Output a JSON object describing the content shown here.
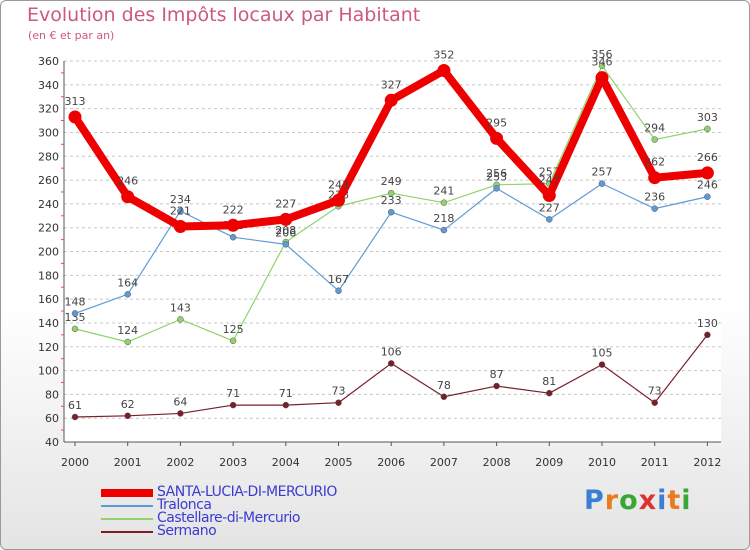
{
  "header": {
    "title": "Evolution des Impôts locaux par Habitant",
    "subtitle": "(en € et par an)"
  },
  "logo": {
    "text": "Proxiti",
    "letter_colors": [
      "#3b7fd4",
      "#e87b1e",
      "#3aa635",
      "#e03030",
      "#3b7fd4",
      "#e87b1e",
      "#3aa635"
    ]
  },
  "chart_data": {
    "type": "line",
    "title": "Evolution des Impôts locaux par Habitant",
    "subtitle": "(en € et par an)",
    "x": [
      "2000",
      "2001",
      "2002",
      "2003",
      "2004",
      "2005",
      "2006",
      "2007",
      "2008",
      "2009",
      "2010",
      "2011",
      "2012"
    ],
    "ylim": [
      40,
      360
    ],
    "yticks": [
      40,
      60,
      80,
      100,
      120,
      140,
      160,
      180,
      200,
      220,
      240,
      260,
      280,
      300,
      320,
      340,
      360
    ],
    "grid": "horizontal dashed",
    "legend_position": "bottom-left",
    "series": [
      {
        "name": "Sermano",
        "color": "#7a1f2a",
        "values": [
          61,
          62,
          64,
          71,
          71,
          73,
          106,
          78,
          87,
          81,
          105,
          73,
          130
        ],
        "labels": [
          "61",
          "62",
          "64",
          "71",
          "71",
          "73",
          "106",
          "78",
          "87",
          "81",
          "105",
          "73",
          "130"
        ]
      },
      {
        "name": "Castellare-di-Mercurio",
        "color": "#8ed46a",
        "values": [
          135,
          124,
          143,
          125,
          208,
          238,
          249,
          241,
          256,
          257,
          356,
          294,
          303
        ],
        "labels": [
          "135",
          "124",
          "143",
          "125",
          "208",
          "238",
          "249",
          "241",
          "256",
          "257",
          "356",
          "294",
          "303"
        ]
      },
      {
        "name": "Tralonca",
        "color": "#5f9ad6",
        "values": [
          148,
          164,
          234,
          212,
          206,
          167,
          233,
          218,
          253,
          227,
          257,
          236,
          246
        ],
        "labels": [
          "148",
          "164",
          "234",
          "212",
          "206",
          "167",
          "233",
          "218",
          "253",
          "227",
          "257",
          "236",
          "246"
        ]
      },
      {
        "name": "SANTA-LUCIA-DI-MERCURIO",
        "color": "#ee0000",
        "values": [
          313,
          246,
          221,
          222,
          227,
          243,
          327,
          352,
          295,
          247,
          346,
          262,
          266
        ],
        "labels": [
          "313",
          "246",
          "221",
          "222",
          "227",
          "243",
          "327",
          "352",
          "295",
          "247",
          "346",
          "262",
          "266"
        ]
      }
    ],
    "legend": [
      {
        "name": "SANTA-LUCIA-DI-MERCURIO",
        "color": "#ee0000",
        "text_color": "#3b3bd4"
      },
      {
        "name": "Tralonca",
        "color": "#5f9ad6",
        "text_color": "#3b3bd4"
      },
      {
        "name": "Castellare-di-Mercurio",
        "color": "#8ed46a",
        "text_color": "#3b3bd4"
      },
      {
        "name": "Sermano",
        "color": "#7a1f2a",
        "text_color": "#3b3bd4"
      }
    ]
  }
}
